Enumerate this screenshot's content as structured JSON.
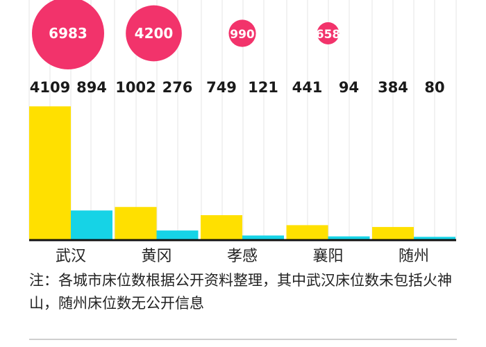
{
  "chart_data": {
    "type": "bar",
    "categories": [
      "武汉",
      "黄冈",
      "孝感",
      "襄阳",
      "随州"
    ],
    "series": [
      {
        "values": [
          4109,
          1002,
          749,
          441,
          384
        ],
        "color": "#FFE000"
      },
      {
        "values": [
          894,
          276,
          121,
          94,
          80
        ],
        "color": "#16D3E6"
      }
    ],
    "bubbles": [
      6983,
      4200,
      990,
      658,
      null
    ],
    "bubble_color": "#F2336B",
    "ylim": [
      0,
      4200
    ],
    "grid": true
  },
  "note": "注：各城市床位数根据公开资料整理，其中武汉床位数未包括火神山，随州床位数无公开信息"
}
